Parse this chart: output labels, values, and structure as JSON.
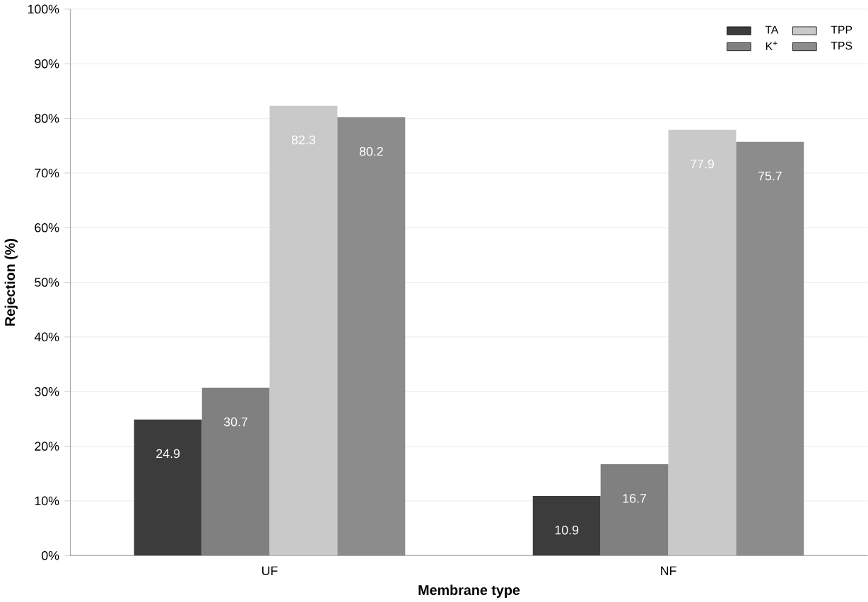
{
  "chart_data": {
    "type": "bar",
    "xlabel": "Membrane type",
    "ylabel": "Rejection (%)",
    "categories": [
      "UF",
      "NF"
    ],
    "series": [
      {
        "name": "TA",
        "color": "#3c3c3c",
        "values": [
          24.9,
          10.9
        ]
      },
      {
        "name": "K$^{+}$",
        "color": "#808080",
        "values": [
          30.7,
          16.7
        ]
      },
      {
        "name": "TPP",
        "color": "#c9c9c9",
        "values": [
          82.3,
          77.9
        ]
      },
      {
        "name": "TPS",
        "color": "#8c8c8c",
        "values": [
          80.2,
          75.7
        ]
      }
    ],
    "ylim": [
      0,
      100
    ],
    "yticks": [
      {
        "value": 0,
        "label": "0%"
      },
      {
        "value": 10,
        "label": "10%"
      },
      {
        "value": 20,
        "label": "20%"
      },
      {
        "value": 30,
        "label": "30%"
      },
      {
        "value": 40,
        "label": "40%"
      },
      {
        "value": 50,
        "label": "50%"
      },
      {
        "value": 60,
        "label": "60%"
      },
      {
        "value": 70,
        "label": "70%"
      },
      {
        "value": 80,
        "label": "80%"
      },
      {
        "value": 90,
        "label": "90%"
      },
      {
        "value": 100,
        "label": "100%"
      }
    ],
    "grid": "y",
    "legend": "top right",
    "data_labels": true
  }
}
